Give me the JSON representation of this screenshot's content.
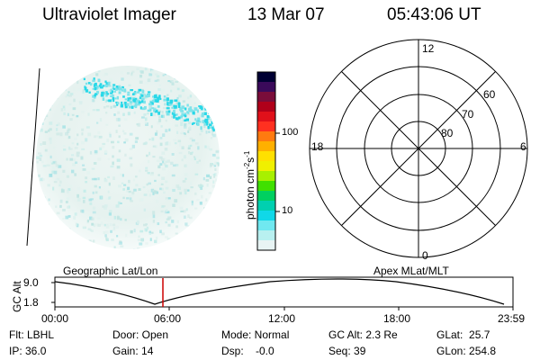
{
  "header": {
    "instrument": "Ultraviolet Imager",
    "date": "13 Mar 07",
    "time": "05:43:06 UT"
  },
  "colorbar": {
    "ticks": [
      "100",
      "10"
    ],
    "units": "photon cm",
    "units_exp1": "-2",
    "units_mid": "s",
    "units_exp2": "-1",
    "colors": [
      "#000033",
      "#3a0a5a",
      "#7a0d3a",
      "#b0001a",
      "#e0101a",
      "#ff3020",
      "#ff7a10",
      "#ffb000",
      "#ffe000",
      "#f0f000",
      "#a8f000",
      "#40e000",
      "#00d060",
      "#00d0b0",
      "#10d8e8",
      "#70e8f0",
      "#b8f0f0",
      "#e8f4f4"
    ]
  },
  "polar_grid": {
    "mlt_labels": [
      "12",
      "18",
      "6",
      "0"
    ],
    "mlat_labels": [
      "60",
      "70",
      "80"
    ]
  },
  "orbit_plot": {
    "left_title": "Geographic Lat/Lon",
    "right_title": "Apex MLat/MLT",
    "y_axis_label": "GC Alt",
    "y_ticks": [
      "9.0",
      "1.8"
    ],
    "x_ticks": [
      "00:00",
      "06:00",
      "12:00",
      "18:00",
      "23:59"
    ]
  },
  "status": {
    "filter": "Flt: LBHL",
    "ip": "IP: 36.0",
    "door": "Door: Open",
    "gain": "Gain: 14",
    "mode": "Mode: Normal",
    "dsp": "Dsp:    -0.0",
    "gc_alt": "GC Alt: 2.3 Re",
    "seq": "Seq: 39",
    "glat": "GLat:  25.7",
    "glon": "GLon: 254.8"
  }
}
